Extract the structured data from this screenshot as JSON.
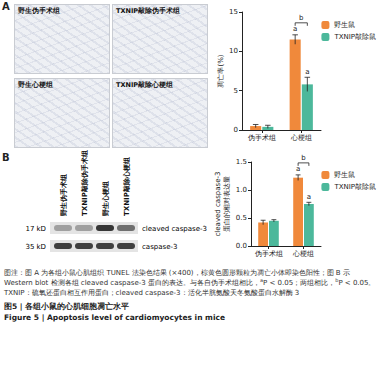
{
  "panels": {
    "A": {
      "label": "A",
      "images": [
        "野生伪手术组",
        "TXNIP敲除伪手术组",
        "野生心梗组",
        "TXNIP敲除心梗组"
      ]
    },
    "B": {
      "label": "B",
      "lanes": [
        "野生伪手术组",
        "TXNIP敲除伪手术组",
        "野生心梗组",
        "TXNIP敲除心梗组"
      ],
      "bands": [
        {
          "size": "17 kD",
          "name": "cleaved caspase-3"
        },
        {
          "size": "35 kD",
          "name": "caspase-3"
        }
      ]
    }
  },
  "chart_data": [
    {
      "type": "bar",
      "y_label": "凋亡率(%)",
      "categories": [
        "伪手术组",
        "心梗组"
      ],
      "series": [
        {
          "name": "野生鼠",
          "color": "#f0893b",
          "values": [
            0.5,
            11.5
          ],
          "errors": [
            0.2,
            0.6
          ]
        },
        {
          "name": "TXNIP敲除鼠",
          "color": "#4cb89b",
          "values": [
            0.4,
            5.8
          ],
          "errors": [
            0.2,
            0.9
          ]
        }
      ],
      "ylim": [
        0,
        15
      ],
      "yticks": [
        0,
        5,
        10,
        15
      ],
      "grid": false,
      "legend": "top-right",
      "annotations": [
        {
          "category": "心梗组",
          "series": "野生鼠",
          "text": "a"
        },
        {
          "category": "心梗组",
          "series": "TXNIP敲除鼠",
          "text": "a"
        }
      ],
      "bracket": {
        "category": "心梗组",
        "text": "b"
      }
    },
    {
      "type": "bar",
      "y_label": "cleaved caspase-3\n蛋白的相对表达量",
      "categories": [
        "伪手术组",
        "心梗组"
      ],
      "series": [
        {
          "name": "野生鼠",
          "color": "#f0893b",
          "values": [
            0.42,
            1.22
          ],
          "errors": [
            0.04,
            0.05
          ]
        },
        {
          "name": "TXNIP敲除鼠",
          "color": "#4cb89b",
          "values": [
            0.45,
            0.75
          ],
          "errors": [
            0.02,
            0.03
          ]
        }
      ],
      "ylim": [
        0,
        1.5
      ],
      "yticks": [
        {
          "value": 0,
          "label": "0.0"
        },
        0.5,
        {
          "value": 1,
          "label": "1.0"
        },
        1.5
      ],
      "grid": false,
      "legend": "top-right",
      "annotations": [
        {
          "category": "心梗组",
          "series": "野生鼠",
          "text": "a"
        },
        {
          "category": "心梗组",
          "series": "TXNIP敲除鼠",
          "text": "a"
        }
      ],
      "bracket": {
        "category": "心梗组",
        "text": "b"
      }
    }
  ],
  "caption": {
    "note": [
      {
        "text": "图注：图 A 为各组小鼠心肌组织 TUNEL 法染色结果 (×400)，棕黄色圆形颗粒为凋亡小体即染色阳性；图 B 示 Western blot 检测各组 cleaved caspase-3 蛋白的表达。与各自伪手术组相比，"
      },
      {
        "sup": "a"
      },
      {
        "text": "P < 0.05；两组相比，"
      },
      {
        "sup": "b"
      },
      {
        "text": "P < 0.05。TXNIP：硫氧还蛋白相互作用蛋白；cleaved caspase-3：活化半胱氨酸天冬氨酸蛋白水解酶 3"
      }
    ],
    "title_zh": "图5 | 各组小鼠的心肌细胞凋亡水平",
    "title_en": "Figure 5 | Apoptosis level of cardiomyocytes in mice"
  }
}
